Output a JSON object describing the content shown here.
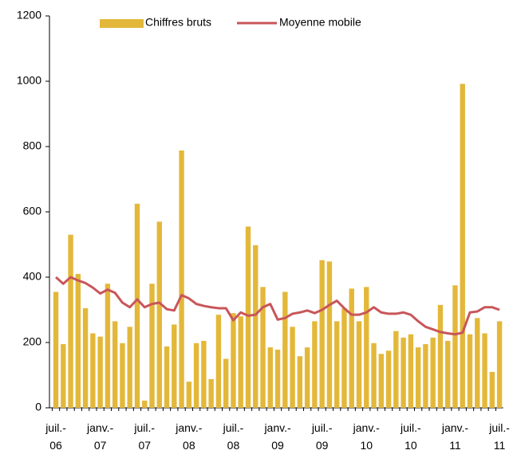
{
  "chart_data": {
    "type": "bar_line",
    "categories": [
      "juil.-06",
      null,
      null,
      null,
      null,
      null,
      "janv.-07",
      null,
      null,
      null,
      null,
      null,
      "juil.-07",
      null,
      null,
      null,
      null,
      null,
      "janv.-08",
      null,
      null,
      null,
      null,
      null,
      "juil.-08",
      null,
      null,
      null,
      null,
      null,
      "janv.-09",
      null,
      null,
      null,
      null,
      null,
      "juil.-09",
      null,
      null,
      null,
      null,
      null,
      "janv.-10",
      null,
      null,
      null,
      null,
      null,
      "juil.-10",
      null,
      null,
      null,
      null,
      null,
      "janv.-11",
      null,
      null,
      null,
      null,
      null,
      "juil.-11"
    ],
    "series": [
      {
        "name": "Chiffres bruts",
        "type": "bar",
        "color": "#e3b83a",
        "values": [
          355,
          195,
          530,
          410,
          305,
          228,
          218,
          380,
          265,
          198,
          248,
          625,
          22,
          380,
          570,
          188,
          255,
          788,
          80,
          198,
          205,
          88,
          285,
          150,
          290,
          280,
          555,
          498,
          370,
          185,
          178,
          355,
          248,
          158,
          185,
          265,
          452,
          448,
          265,
          305,
          365,
          265,
          370,
          198,
          165,
          175,
          235,
          215,
          225,
          185,
          195,
          215,
          315,
          205,
          375,
          992,
          225,
          275,
          228,
          110,
          265
        ]
      },
      {
        "name": "Moyenne mobile",
        "type": "line",
        "color": "#c8565a",
        "values": [
          400,
          380,
          400,
          390,
          382,
          368,
          350,
          362,
          352,
          322,
          308,
          332,
          308,
          318,
          322,
          302,
          298,
          345,
          335,
          318,
          312,
          308,
          305,
          305,
          268,
          292,
          282,
          285,
          308,
          318,
          270,
          275,
          288,
          292,
          298,
          290,
          300,
          315,
          328,
          305,
          285,
          285,
          292,
          308,
          292,
          288,
          288,
          292,
          285,
          265,
          248,
          240,
          232,
          228,
          225,
          230,
          292,
          295,
          308,
          308,
          300
        ]
      }
    ],
    "ylim": [
      0,
      1200
    ],
    "yticks": [
      0,
      200,
      400,
      600,
      800,
      1000,
      1200
    ],
    "grid": false,
    "legend": "top"
  }
}
